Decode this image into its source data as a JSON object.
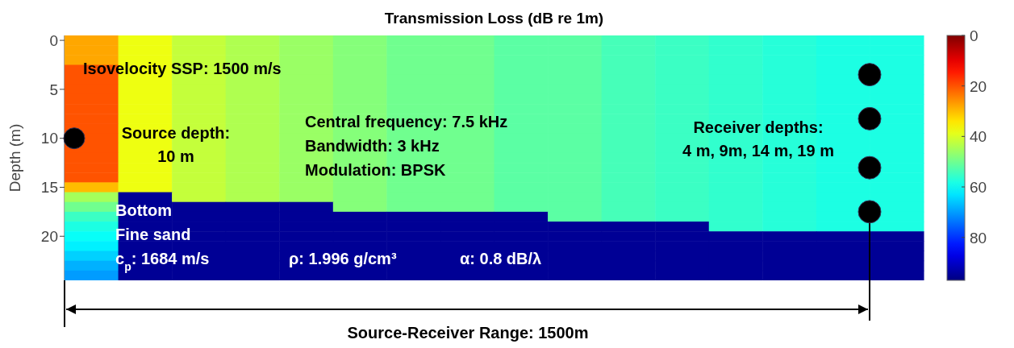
{
  "chart_data": {
    "type": "heatmap",
    "title": "Transmission Loss (dB re 1m)",
    "ylabel": "Depth (m)",
    "categories": [
      null,
      null,
      null,
      null,
      null,
      null,
      null,
      null,
      null,
      null,
      null,
      null,
      null,
      null,
      null,
      null
    ],
    "y_categories": [
      "0",
      null,
      null,
      null,
      null,
      "5",
      null,
      null,
      null,
      null,
      "10",
      null,
      null,
      null,
      null,
      "15",
      null,
      null,
      null,
      null,
      "20",
      null,
      null,
      null,
      null
    ],
    "clim": [
      0,
      97
    ],
    "cticks": [
      0,
      20,
      40,
      60,
      80
    ],
    "cells": [
      [
        28,
        38,
        42,
        44,
        46,
        48,
        50,
        50,
        52,
        52,
        54,
        55,
        56,
        57,
        58,
        58
      ],
      [
        28,
        38,
        42,
        44,
        46,
        48,
        50,
        50,
        52,
        52,
        54,
        55,
        56,
        57,
        58,
        58
      ],
      [
        28,
        38,
        42,
        44,
        46,
        48,
        50,
        50,
        52,
        52,
        54,
        55,
        56,
        57,
        58,
        58
      ],
      [
        20,
        38,
        42,
        44,
        46,
        48,
        50,
        50,
        52,
        52,
        54,
        55,
        56,
        57,
        58,
        58
      ],
      [
        20,
        38,
        42,
        44,
        46,
        48,
        50,
        50,
        52,
        52,
        54,
        55,
        56,
        57,
        58,
        58
      ],
      [
        20,
        38,
        42,
        44,
        46,
        48,
        50,
        50,
        52,
        52,
        54,
        55,
        56,
        57,
        58,
        58
      ],
      [
        20,
        38,
        42,
        44,
        46,
        48,
        50,
        50,
        52,
        52,
        54,
        55,
        56,
        57,
        58,
        58
      ],
      [
        20,
        38,
        42,
        44,
        46,
        48,
        50,
        50,
        52,
        52,
        54,
        55,
        56,
        57,
        58,
        58
      ],
      [
        20,
        38,
        42,
        44,
        46,
        48,
        50,
        50,
        52,
        52,
        54,
        55,
        56,
        57,
        58,
        58
      ],
      [
        20,
        38,
        42,
        44,
        46,
        48,
        50,
        50,
        52,
        52,
        54,
        55,
        56,
        57,
        58,
        58
      ],
      [
        20,
        38,
        42,
        44,
        46,
        48,
        50,
        50,
        52,
        52,
        54,
        55,
        56,
        57,
        58,
        58
      ],
      [
        20,
        38,
        42,
        44,
        46,
        48,
        50,
        50,
        52,
        52,
        54,
        55,
        56,
        57,
        58,
        58
      ],
      [
        20,
        38,
        42,
        44,
        46,
        48,
        50,
        50,
        52,
        52,
        54,
        55,
        56,
        57,
        58,
        58
      ],
      [
        20,
        38,
        42,
        44,
        46,
        48,
        50,
        50,
        52,
        52,
        54,
        55,
        56,
        57,
        58,
        58
      ],
      [
        20,
        38,
        42,
        44,
        46,
        48,
        50,
        50,
        52,
        52,
        54,
        55,
        56,
        57,
        58,
        58
      ],
      [
        30,
        38,
        42,
        44,
        46,
        48,
        50,
        50,
        52,
        52,
        54,
        55,
        56,
        57,
        58,
        58
      ],
      [
        45,
        95,
        42,
        44,
        46,
        48,
        50,
        50,
        52,
        52,
        54,
        55,
        56,
        57,
        58,
        58
      ],
      [
        50,
        95,
        95,
        95,
        95,
        48,
        50,
        50,
        52,
        52,
        54,
        55,
        56,
        57,
        58,
        58
      ],
      [
        55,
        95,
        95,
        95,
        95,
        95,
        95,
        95,
        95,
        52,
        54,
        55,
        56,
        57,
        58,
        58
      ],
      [
        58,
        95,
        95,
        95,
        95,
        95,
        95,
        95,
        95,
        95,
        95,
        95,
        56,
        57,
        58,
        58
      ],
      [
        60,
        95,
        95,
        95,
        95,
        95,
        95,
        95,
        95,
        95,
        95,
        95,
        95,
        95,
        95,
        95
      ],
      [
        62,
        95,
        95,
        95,
        95,
        95,
        95,
        95,
        95,
        95,
        95,
        95,
        95,
        95,
        95,
        95
      ],
      [
        65,
        95,
        95,
        95,
        95,
        95,
        95,
        95,
        95,
        95,
        95,
        95,
        95,
        95,
        95,
        95
      ],
      [
        68,
        95,
        95,
        95,
        95,
        95,
        95,
        95,
        95,
        95,
        95,
        95,
        95,
        95,
        95,
        95
      ],
      [
        70,
        95,
        95,
        95,
        95,
        95,
        95,
        95,
        95,
        95,
        95,
        95,
        95,
        95,
        95,
        95
      ]
    ],
    "annotations": [
      "Isovelocity SSP: 1500 m/s",
      "Source depth:\n10 m",
      "Central frequency: 7.5 kHz",
      "Bandwidth: 3 kHz",
      "Modulation: BPSK",
      "Receiver depths:\n4 m, 9m, 14 m, 19 m",
      "Bottom",
      "Fine sand",
      "c$_{p}$: 1684 m/s",
      "ρ: 1.996 g/cm³",
      "α: 0.8 dB/λ",
      "Source-Receiver Range: 1500m"
    ]
  }
}
